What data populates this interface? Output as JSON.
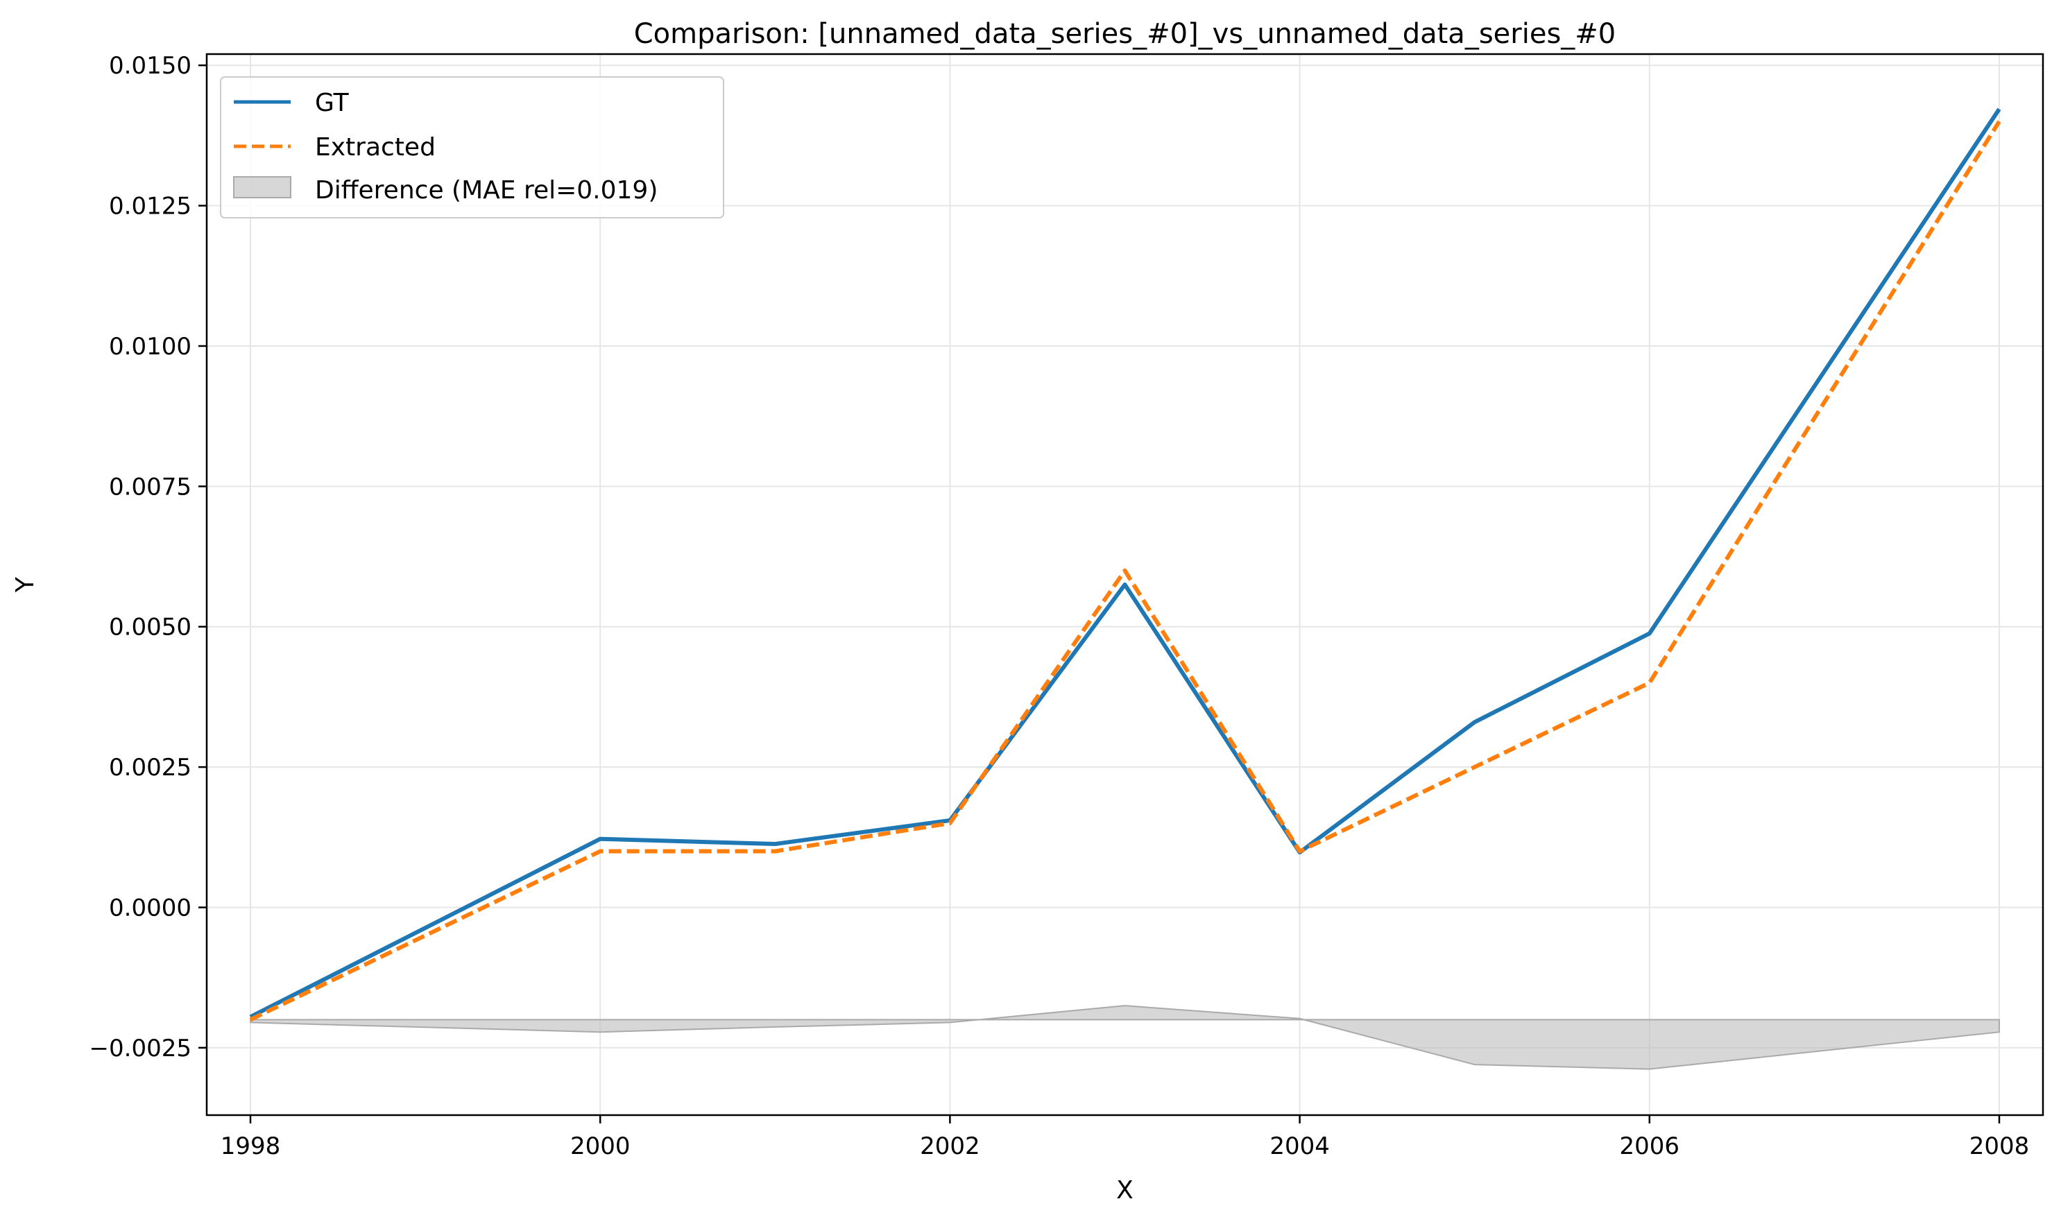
{
  "chart_data": {
    "type": "line",
    "title": "Comparison: [unnamed_data_series_#0]_vs_unnamed_data_series_#0",
    "xlabel": "X",
    "ylabel": "Y",
    "xlim": [
      1997.75,
      2008.25
    ],
    "ylim": [
      -0.0037,
      0.0152
    ],
    "x_ticks": [
      1998,
      2000,
      2002,
      2004,
      2006,
      2008
    ],
    "x_tick_labels": [
      "1998",
      "2000",
      "2002",
      "2004",
      "2006",
      "2008"
    ],
    "y_ticks": [
      -0.0025,
      0.0,
      0.0025,
      0.005,
      0.0075,
      0.01,
      0.0125,
      0.015
    ],
    "y_tick_labels": [
      "−0.0025",
      "0.0000",
      "0.0025",
      "0.0050",
      "0.0075",
      "0.0100",
      "0.0125",
      "0.0150"
    ],
    "grid": true,
    "legend_position": "top-left",
    "series": [
      {
        "name": "GT",
        "style": "solid",
        "color": "#1f77b4",
        "x": [
          1998,
          2000,
          2001,
          2002,
          2003,
          2004,
          2005,
          2006,
          2008
        ],
        "y": [
          -0.00195,
          0.00122,
          0.00113,
          0.00155,
          0.00575,
          0.00098,
          0.0033,
          0.00488,
          0.01422
        ]
      },
      {
        "name": "Extracted",
        "style": "dashed",
        "color": "#ff7f0e",
        "x": [
          1998,
          2000,
          2001,
          2002,
          2003,
          2004,
          2005,
          2006,
          2008
        ],
        "y": [
          -0.002,
          0.001,
          0.001,
          0.0015,
          0.006,
          0.001,
          0.0025,
          0.004,
          0.014
        ]
      }
    ],
    "difference": {
      "name": "Difference (MAE rel=0.019)",
      "color": "#bdbdbd",
      "baseline": -0.002,
      "x": [
        1998,
        2000,
        2001,
        2002,
        2003,
        2004,
        2005,
        2006,
        2008
      ],
      "y": [
        -0.00205,
        -0.00222,
        -0.00213,
        -0.00205,
        -0.00175,
        -0.00198,
        -0.0028,
        -0.00288,
        -0.00222
      ]
    }
  }
}
